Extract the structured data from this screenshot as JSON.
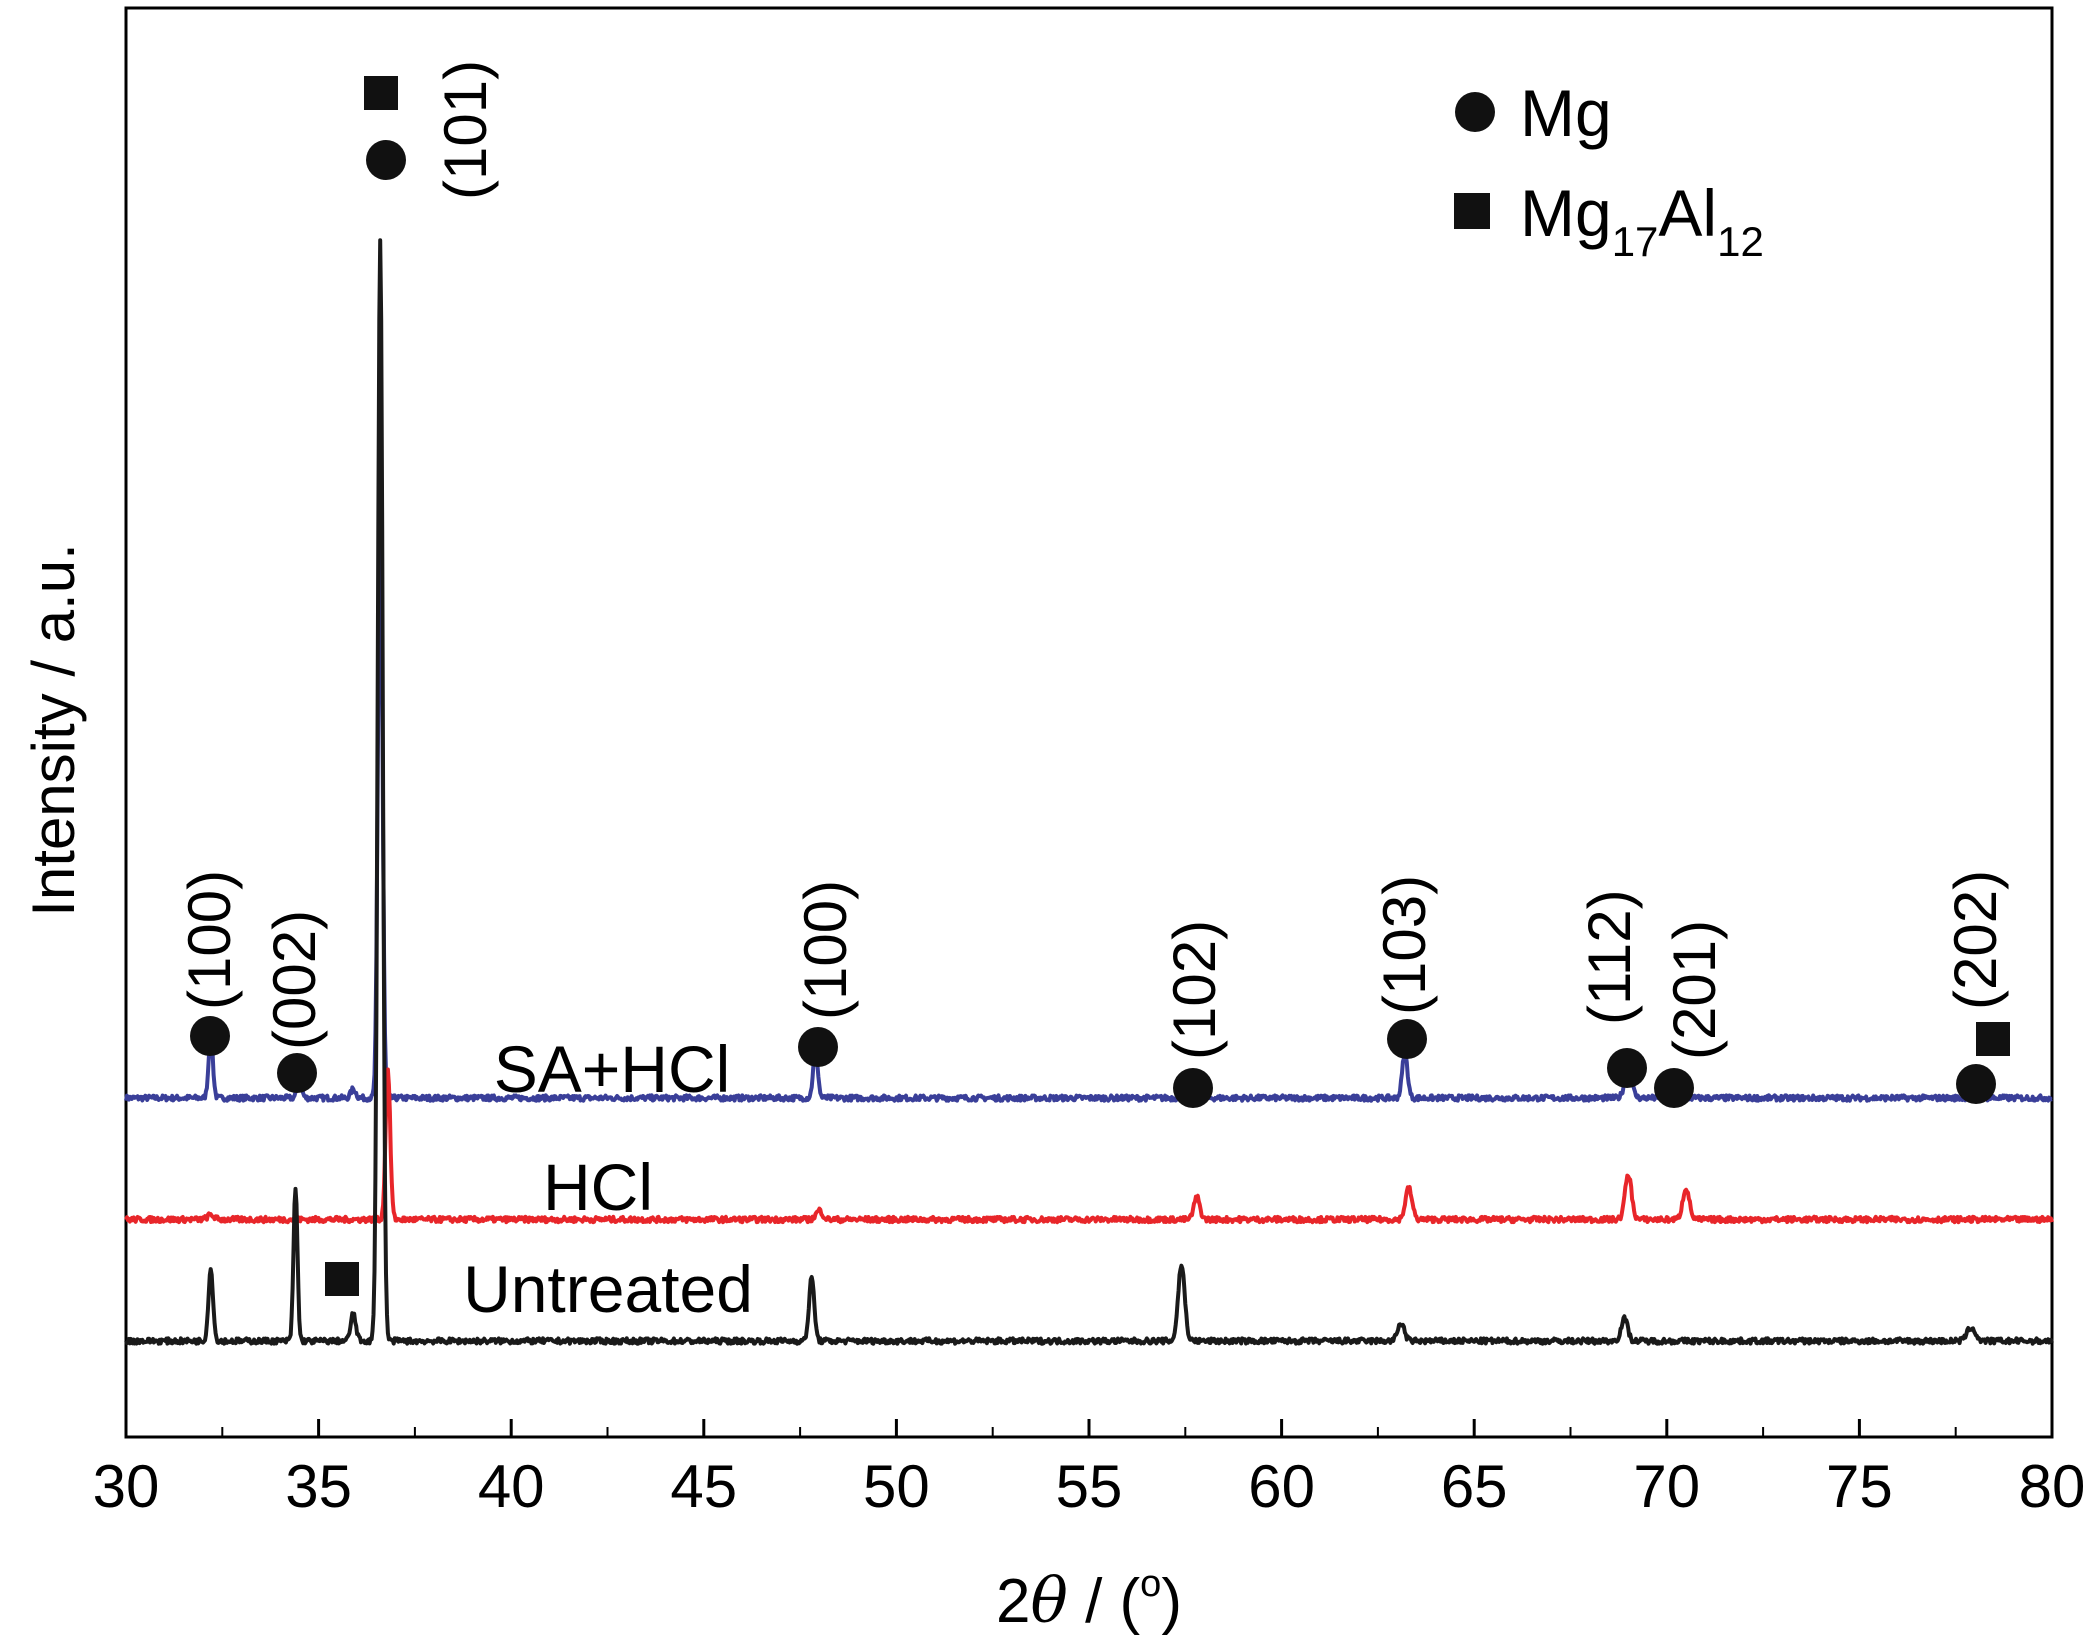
{
  "chart_data": {
    "type": "line",
    "xlabel_prefix": "2",
    "xlabel_symbol": "θ",
    "xlabel_suffix": " / (",
    "xlabel_unit_sup": "o",
    "xlabel_close": ")",
    "ylabel": "Intensity / a.u.",
    "xlim": [
      30,
      80
    ],
    "xticks": [
      "30",
      "35",
      "40",
      "45",
      "50",
      "55",
      "60",
      "65",
      "70",
      "75",
      "80"
    ],
    "yticks_shown": false,
    "legend": {
      "position": "top-right",
      "entries": [
        {
          "marker": "circle",
          "label": "Mg"
        },
        {
          "marker": "square",
          "label_main": "Mg",
          "label_sub1": "17",
          "label_mid": "Al",
          "label_sub2": "12"
        }
      ]
    },
    "series": [
      {
        "name": "Untreated",
        "color": "#1a1a1a",
        "baseline": 0.0,
        "peaks": [
          {
            "x": 32.2,
            "h": 0.16,
            "w": 0.14
          },
          {
            "x": 34.4,
            "h": 0.34,
            "w": 0.12
          },
          {
            "x": 35.9,
            "h": 0.06,
            "w": 0.16
          },
          {
            "x": 36.6,
            "h": 2.45,
            "w": 0.15
          },
          {
            "x": 47.8,
            "h": 0.14,
            "w": 0.16
          },
          {
            "x": 57.4,
            "h": 0.17,
            "w": 0.2
          },
          {
            "x": 63.1,
            "h": 0.04,
            "w": 0.2
          },
          {
            "x": 68.9,
            "h": 0.05,
            "w": 0.2
          },
          {
            "x": 77.9,
            "h": 0.03,
            "w": 0.25
          }
        ]
      },
      {
        "name": "HCl",
        "color": "#e8262a",
        "baseline": 0.27,
        "peaks": [
          {
            "x": 32.2,
            "h": 0.01,
            "w": 0.2
          },
          {
            "x": 36.8,
            "h": 0.33,
            "w": 0.14
          },
          {
            "x": 48.0,
            "h": 0.02,
            "w": 0.2
          },
          {
            "x": 57.8,
            "h": 0.05,
            "w": 0.18
          },
          {
            "x": 63.3,
            "h": 0.07,
            "w": 0.2
          },
          {
            "x": 69.0,
            "h": 0.1,
            "w": 0.2
          },
          {
            "x": 70.5,
            "h": 0.07,
            "w": 0.2
          }
        ]
      },
      {
        "name": "SA+HCl",
        "color": "#3a3f99",
        "baseline": 0.54,
        "peaks": [
          {
            "x": 32.2,
            "h": 0.14,
            "w": 0.13
          },
          {
            "x": 34.5,
            "h": 0.04,
            "w": 0.14
          },
          {
            "x": 35.9,
            "h": 0.02,
            "w": 0.15
          },
          {
            "x": 36.6,
            "h": 1.27,
            "w": 0.14
          },
          {
            "x": 47.9,
            "h": 0.11,
            "w": 0.14
          },
          {
            "x": 57.6,
            "h": 0.02,
            "w": 0.2
          },
          {
            "x": 63.2,
            "h": 0.1,
            "w": 0.16
          },
          {
            "x": 69.0,
            "h": 0.06,
            "w": 0.22
          },
          {
            "x": 70.3,
            "h": 0.03,
            "w": 0.2
          },
          {
            "x": 78.0,
            "h": 0.03,
            "w": 0.22
          }
        ]
      }
    ],
    "annotations": [
      {
        "text": "(100)",
        "marker": "circle"
      },
      {
        "text": "(002)",
        "marker": "circle"
      },
      {
        "text": "(101)",
        "marker": "circle+square"
      },
      {
        "text": "(100)",
        "marker": "circle"
      },
      {
        "text": "(102)",
        "marker": "circle"
      },
      {
        "text": "(103)",
        "marker": "circle"
      },
      {
        "text": "(112)",
        "marker": "circle"
      },
      {
        "text": "(201)",
        "marker": "circle"
      },
      {
        "text": "(202)",
        "marker": "circle+square"
      }
    ],
    "extra_marker": {
      "marker": "square",
      "near_series": "Untreated",
      "x": 35.8
    }
  }
}
